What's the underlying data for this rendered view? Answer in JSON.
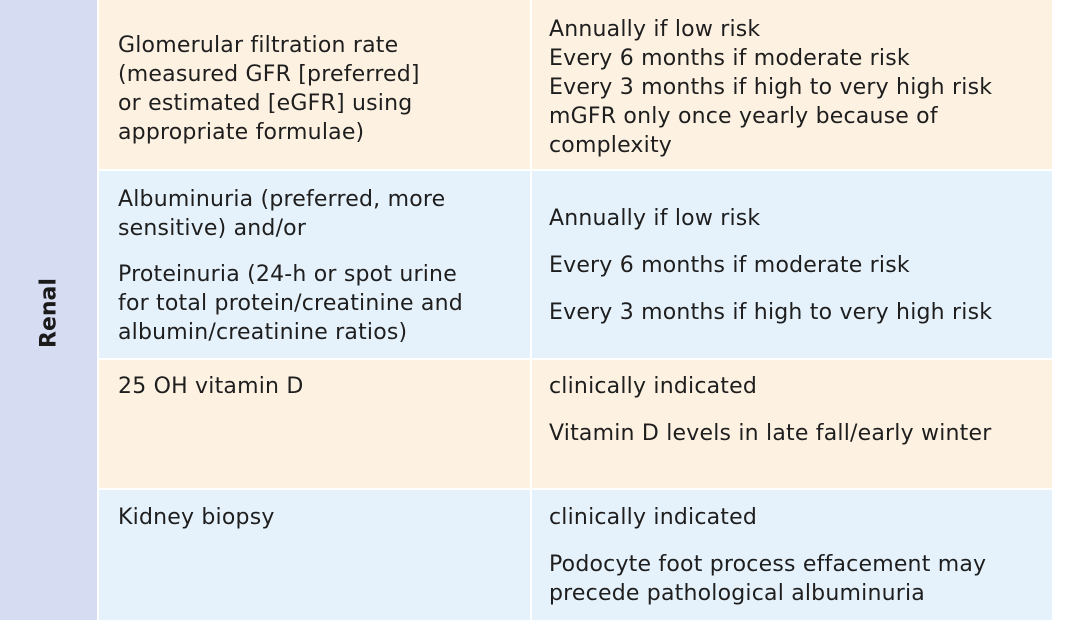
{
  "section_label": "Renal",
  "rows": [
    {
      "test_lines": [
        "Glomerular filtration rate",
        "(measured GFR [preferred]",
        "or estimated [eGFR] using",
        "appropriate formulae)"
      ],
      "frequency_lines": [
        "Annually if low risk",
        "Every 6 months if moderate risk",
        "Every 3 months if high to very high risk",
        "mGFR only once yearly because of",
        "complexity"
      ]
    },
    {
      "test_lines": [
        "Albuminuria (preferred, more",
        "sensitive) and/or",
        "Proteinuria (24-h or spot urine",
        "for total protein/creatinine and",
        "albumin/creatinine ratios)"
      ],
      "frequency_lines": [
        "Annually if low risk",
        "Every 6 months if moderate risk",
        "Every 3 months if high to very high risk"
      ]
    },
    {
      "test_lines": [
        "25 OH vitamin D"
      ],
      "frequency_lines": [
        "clinically indicated",
        "Vitamin D levels in late fall/early winter"
      ]
    },
    {
      "test_lines": [
        "Kidney biopsy"
      ],
      "frequency_lines": [
        "clinically indicated",
        "Podocyte foot process effacement may",
        "precede pathological albuminuria"
      ]
    }
  ],
  "colors": {
    "side_band": "#d6dcf1",
    "row_peach": "#fdf1e2",
    "row_blue": "#e6f2fb"
  }
}
